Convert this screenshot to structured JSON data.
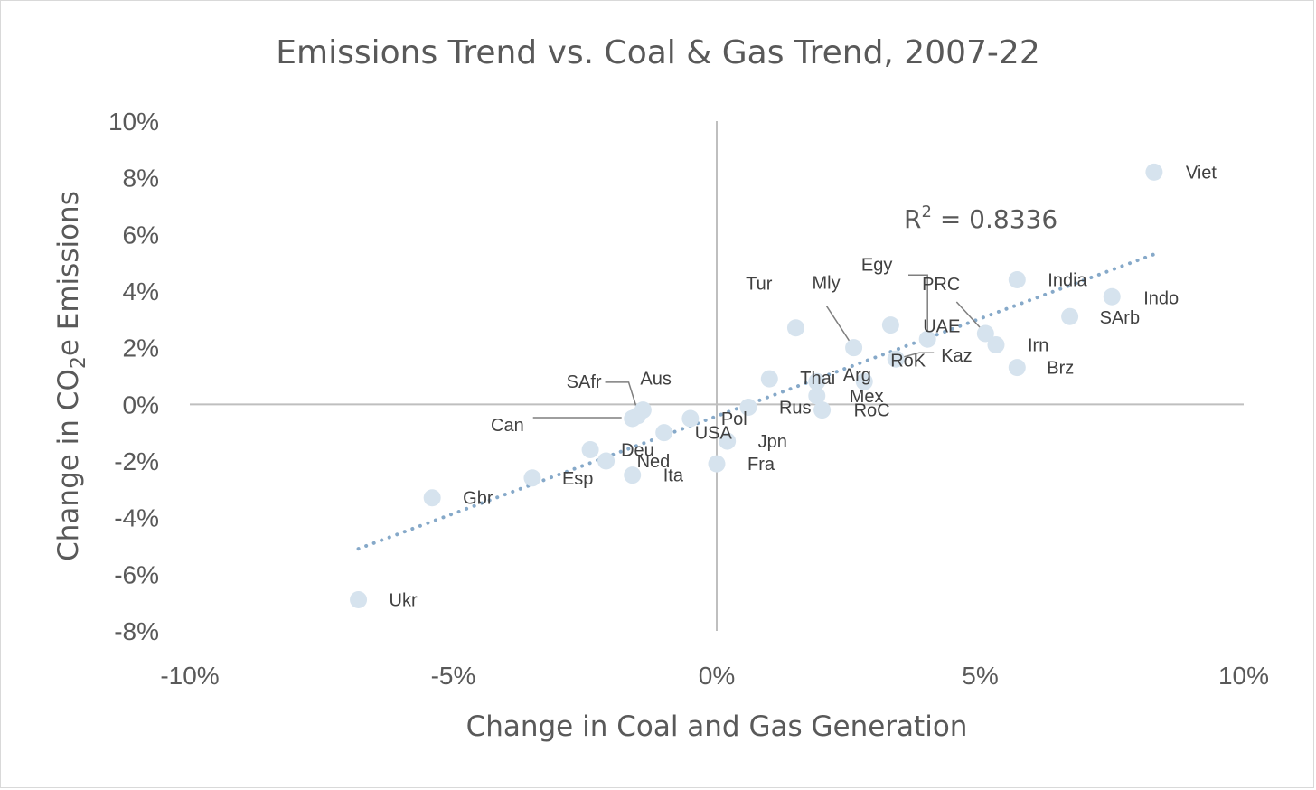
{
  "chart_data": {
    "type": "scatter",
    "title": "Emissions Trend vs. Coal & Gas Trend, 2007-22",
    "xlabel": "Change in Coal and Gas Generation",
    "ylabel": {
      "prefix": "Change in CO",
      "sub": "2",
      "suffix": "e Emissions"
    },
    "xlim": [
      -10,
      10
    ],
    "ylim": [
      -8,
      10
    ],
    "xticks": [
      -10,
      -5,
      0,
      5,
      10
    ],
    "xtick_labels": [
      "-10%",
      "-5%",
      "0%",
      "5%",
      "10%"
    ],
    "yticks": [
      10,
      8,
      6,
      4,
      2,
      0,
      -2,
      -4,
      -6,
      -8
    ],
    "ytick_labels": [
      "10%",
      "8%",
      "6%",
      "4%",
      "2%",
      "0%",
      "-2%",
      "-4%",
      "-6%",
      "-8%"
    ],
    "grid": false,
    "legend": "none",
    "trendline": {
      "type": "linear",
      "style": "dotted",
      "x_range": [
        -6.8,
        8.3
      ],
      "y_range": [
        -5.1,
        5.3
      ],
      "r_squared_label": {
        "prefix": "R",
        "sup": "2",
        "suffix": " = 0.8336"
      }
    },
    "points": [
      {
        "label": "Viet",
        "x": 8.3,
        "y": 8.2
      },
      {
        "label": "India",
        "x": 5.7,
        "y": 4.4
      },
      {
        "label": "Indo",
        "x": 7.5,
        "y": 3.8
      },
      {
        "label": "SArb",
        "x": 6.7,
        "y": 3.1
      },
      {
        "label": "Irn",
        "x": 5.3,
        "y": 2.1
      },
      {
        "label": "Brz",
        "x": 5.7,
        "y": 1.3
      },
      {
        "label": "PRC",
        "x": 5.1,
        "y": 2.5
      },
      {
        "label": "Egy",
        "x": 3.3,
        "y": 2.8
      },
      {
        "label": "UAE",
        "x": 4.0,
        "y": 2.3
      },
      {
        "label": "Kaz",
        "x": 3.4,
        "y": 1.6
      },
      {
        "label": "Mly",
        "x": 2.6,
        "y": 2.0
      },
      {
        "label": "Tur",
        "x": 1.5,
        "y": 2.7
      },
      {
        "label": "Thai",
        "x": 1.0,
        "y": 0.9
      },
      {
        "label": "Arg",
        "x": 1.9,
        "y": 0.8
      },
      {
        "label": "RoK",
        "x": 2.8,
        "y": 0.8
      },
      {
        "label": "Mex",
        "x": 1.9,
        "y": 0.3
      },
      {
        "label": "RoC",
        "x": 2.0,
        "y": -0.2
      },
      {
        "label": "Rus",
        "x": 0.6,
        "y": -0.1
      },
      {
        "label": "Pol",
        "x": -0.5,
        "y": -0.5
      },
      {
        "label": "USA",
        "x": -1.0,
        "y": -1.0
      },
      {
        "label": "Jpn",
        "x": 0.2,
        "y": -1.3
      },
      {
        "label": "Fra",
        "x": 0.0,
        "y": -2.1
      },
      {
        "label": "Aus",
        "x": -1.4,
        "y": -0.2
      },
      {
        "label": "SAfr",
        "x": -1.5,
        "y": -0.4
      },
      {
        "label": "Can",
        "x": -1.6,
        "y": -0.5
      },
      {
        "label": "Deu",
        "x": -2.4,
        "y": -1.6
      },
      {
        "label": "Ned",
        "x": -2.1,
        "y": -2.0
      },
      {
        "label": "Ita",
        "x": -1.6,
        "y": -2.5
      },
      {
        "label": "Esp",
        "x": -3.5,
        "y": -2.6
      },
      {
        "label": "Gbr",
        "x": -5.4,
        "y": -3.3
      },
      {
        "label": "Ukr",
        "x": -6.8,
        "y": -6.9
      }
    ],
    "colors": {
      "marker": "#d6e3ee",
      "trendline": "#86a9c9",
      "axis": "#bfbfbf",
      "text": "#595959",
      "leader": "#7f7f7f"
    }
  }
}
